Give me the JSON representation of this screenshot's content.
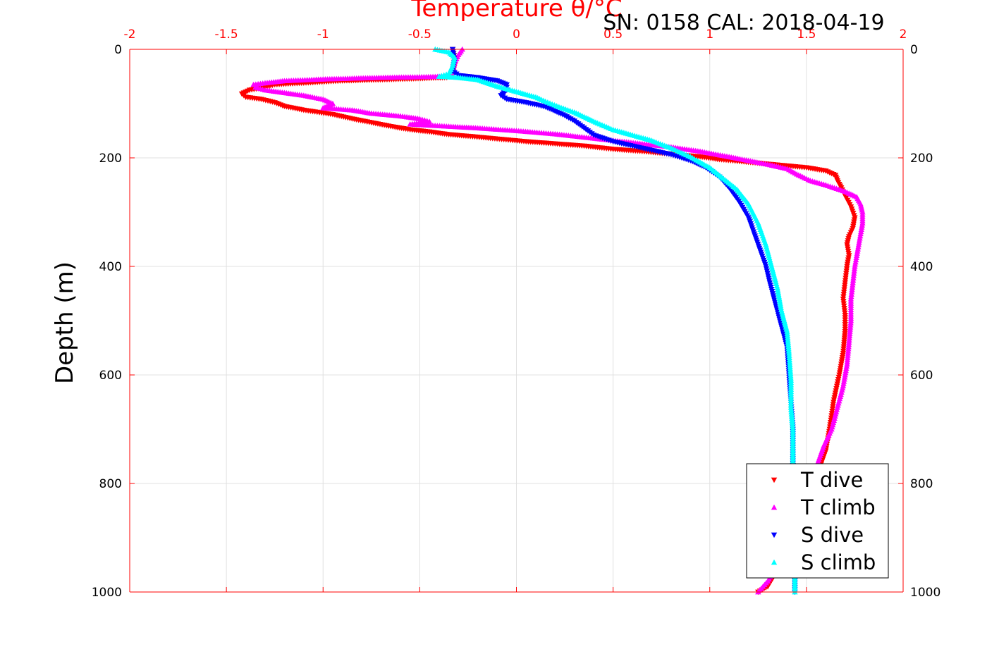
{
  "chart_data": {
    "type": "scatter",
    "title": "SN: 0158  CAL: 2018-04-19",
    "xlabel": "Temperature θ/°C",
    "ylabel": "Depth (m)",
    "xlim": [
      -2,
      2
    ],
    "ylim": [
      0,
      1000
    ],
    "y_reversed": true,
    "x_axis_position": "top",
    "x_ticks": [
      "-2",
      "-1.5",
      "-1",
      "-0.5",
      "0",
      "0.5",
      "1",
      "1.5",
      "2"
    ],
    "y_ticks": [
      "0",
      "200",
      "400",
      "600",
      "800",
      "1000"
    ],
    "grid": true,
    "legend_position": "bottom-right",
    "colors": {
      "axis_x": "#ff0000",
      "axis_y": "#000000",
      "grid": "#e0e0e0"
    },
    "series": [
      {
        "name": "T dive",
        "color": "#ff0000",
        "marker": "triangle-down",
        "points": [
          [
            -0.33,
            0
          ],
          [
            -0.32,
            15
          ],
          [
            -0.32,
            30
          ],
          [
            -0.33,
            45
          ],
          [
            -0.36,
            52
          ],
          [
            -0.6,
            55
          ],
          [
            -0.9,
            58
          ],
          [
            -1.1,
            62
          ],
          [
            -1.25,
            65
          ],
          [
            -1.3,
            70
          ],
          [
            -1.38,
            75
          ],
          [
            -1.42,
            82
          ],
          [
            -1.4,
            88
          ],
          [
            -1.32,
            92
          ],
          [
            -1.25,
            98
          ],
          [
            -1.2,
            105
          ],
          [
            -1.1,
            112
          ],
          [
            -0.95,
            120
          ],
          [
            -0.85,
            128
          ],
          [
            -0.75,
            135
          ],
          [
            -0.65,
            142
          ],
          [
            -0.55,
            148
          ],
          [
            -0.45,
            152
          ],
          [
            -0.35,
            157
          ],
          [
            -0.25,
            160
          ],
          [
            -0.1,
            165
          ],
          [
            0.05,
            170
          ],
          [
            0.2,
            174
          ],
          [
            0.35,
            178
          ],
          [
            0.5,
            184
          ],
          [
            0.65,
            188
          ],
          [
            0.8,
            193
          ],
          [
            0.95,
            198
          ],
          [
            1.05,
            203
          ],
          [
            1.2,
            208
          ],
          [
            1.35,
            213
          ],
          [
            1.5,
            218
          ],
          [
            1.6,
            224
          ],
          [
            1.65,
            232
          ],
          [
            1.66,
            242
          ],
          [
            1.68,
            255
          ],
          [
            1.7,
            270
          ],
          [
            1.73,
            290
          ],
          [
            1.75,
            310
          ],
          [
            1.74,
            330
          ],
          [
            1.72,
            345
          ],
          [
            1.71,
            360
          ],
          [
            1.72,
            380
          ],
          [
            1.71,
            400
          ],
          [
            1.7,
            430
          ],
          [
            1.69,
            460
          ],
          [
            1.7,
            490
          ],
          [
            1.7,
            520
          ],
          [
            1.69,
            560
          ],
          [
            1.67,
            600
          ],
          [
            1.64,
            650
          ],
          [
            1.62,
            700
          ],
          [
            1.6,
            740
          ],
          [
            1.58,
            760
          ],
          [
            1.53,
            820
          ],
          [
            1.45,
            870
          ],
          [
            1.4,
            920
          ],
          [
            1.35,
            960
          ],
          [
            1.3,
            990
          ],
          [
            1.25,
            1000
          ]
        ]
      },
      {
        "name": "T climb",
        "color": "#ff00ff",
        "marker": "triangle-up",
        "points": [
          [
            -0.28,
            0
          ],
          [
            -0.3,
            10
          ],
          [
            -0.32,
            25
          ],
          [
            -0.33,
            40
          ],
          [
            -0.35,
            50
          ],
          [
            -0.7,
            52
          ],
          [
            -1.0,
            55
          ],
          [
            -1.2,
            58
          ],
          [
            -1.3,
            62
          ],
          [
            -1.36,
            65
          ],
          [
            -1.35,
            70
          ],
          [
            -1.3,
            75
          ],
          [
            -1.2,
            80
          ],
          [
            -1.1,
            85
          ],
          [
            -1.0,
            92
          ],
          [
            -0.95,
            100
          ],
          [
            -1.0,
            108
          ],
          [
            -0.85,
            112
          ],
          [
            -0.75,
            118
          ],
          [
            -0.6,
            123
          ],
          [
            -0.5,
            128
          ],
          [
            -0.45,
            133
          ],
          [
            -0.55,
            138
          ],
          [
            -0.35,
            142
          ],
          [
            -0.2,
            145
          ],
          [
            0.0,
            150
          ],
          [
            0.2,
            156
          ],
          [
            0.35,
            162
          ],
          [
            0.5,
            168
          ],
          [
            0.65,
            174
          ],
          [
            0.8,
            180
          ],
          [
            0.95,
            188
          ],
          [
            1.1,
            198
          ],
          [
            1.2,
            205
          ],
          [
            1.3,
            212
          ],
          [
            1.4,
            220
          ],
          [
            1.45,
            230
          ],
          [
            1.52,
            242
          ],
          [
            1.6,
            250
          ],
          [
            1.7,
            262
          ],
          [
            1.76,
            272
          ],
          [
            1.78,
            285
          ],
          [
            1.79,
            300
          ],
          [
            1.79,
            320
          ],
          [
            1.78,
            340
          ],
          [
            1.77,
            360
          ],
          [
            1.76,
            380
          ],
          [
            1.75,
            400
          ],
          [
            1.74,
            430
          ],
          [
            1.73,
            460
          ],
          [
            1.73,
            500
          ],
          [
            1.72,
            540
          ],
          [
            1.71,
            580
          ],
          [
            1.69,
            620
          ],
          [
            1.66,
            660
          ],
          [
            1.63,
            700
          ],
          [
            1.59,
            730
          ],
          [
            1.56,
            760
          ],
          [
            1.53,
            800
          ],
          [
            1.47,
            850
          ],
          [
            1.4,
            900
          ],
          [
            1.35,
            950
          ],
          [
            1.3,
            980
          ],
          [
            1.25,
            1000
          ]
        ]
      },
      {
        "name": "S dive",
        "color": "#0000ff",
        "marker": "triangle-down",
        "points": [
          [
            -0.33,
            0
          ],
          [
            -0.32,
            20
          ],
          [
            -0.33,
            40
          ],
          [
            -0.3,
            48
          ],
          [
            -0.2,
            52
          ],
          [
            -0.1,
            58
          ],
          [
            -0.05,
            65
          ],
          [
            -0.05,
            75
          ],
          [
            -0.08,
            85
          ],
          [
            -0.05,
            92
          ],
          [
            0.05,
            98
          ],
          [
            0.15,
            106
          ],
          [
            0.2,
            114
          ],
          [
            0.25,
            122
          ],
          [
            0.3,
            132
          ],
          [
            0.35,
            145
          ],
          [
            0.4,
            158
          ],
          [
            0.5,
            170
          ],
          [
            0.6,
            178
          ],
          [
            0.7,
            186
          ],
          [
            0.8,
            194
          ],
          [
            0.9,
            205
          ],
          [
            0.98,
            218
          ],
          [
            1.05,
            235
          ],
          [
            1.1,
            255
          ],
          [
            1.15,
            280
          ],
          [
            1.2,
            310
          ],
          [
            1.23,
            340
          ],
          [
            1.26,
            370
          ],
          [
            1.29,
            400
          ],
          [
            1.31,
            430
          ],
          [
            1.34,
            470
          ],
          [
            1.37,
            510
          ],
          [
            1.4,
            550
          ],
          [
            1.41,
            600
          ],
          [
            1.42,
            650
          ],
          [
            1.43,
            700
          ],
          [
            1.43,
            750
          ],
          [
            1.43,
            800
          ],
          [
            1.43,
            850
          ],
          [
            1.44,
            900
          ],
          [
            1.44,
            950
          ],
          [
            1.44,
            1000
          ]
        ]
      },
      {
        "name": "S climb",
        "color": "#00ffff",
        "marker": "triangle-up",
        "points": [
          [
            -0.42,
            0
          ],
          [
            -0.35,
            5
          ],
          [
            -0.32,
            15
          ],
          [
            -0.33,
            30
          ],
          [
            -0.35,
            45
          ],
          [
            -0.4,
            50
          ],
          [
            -0.3,
            52
          ],
          [
            -0.2,
            56
          ],
          [
            -0.15,
            62
          ],
          [
            -0.1,
            68
          ],
          [
            0.0,
            78
          ],
          [
            0.1,
            88
          ],
          [
            0.15,
            96
          ],
          [
            0.22,
            106
          ],
          [
            0.3,
            116
          ],
          [
            0.36,
            126
          ],
          [
            0.42,
            136
          ],
          [
            0.5,
            148
          ],
          [
            0.6,
            158
          ],
          [
            0.7,
            168
          ],
          [
            0.8,
            182
          ],
          [
            0.9,
            198
          ],
          [
            1.0,
            218
          ],
          [
            1.07,
            238
          ],
          [
            1.14,
            258
          ],
          [
            1.2,
            285
          ],
          [
            1.25,
            320
          ],
          [
            1.29,
            360
          ],
          [
            1.32,
            400
          ],
          [
            1.35,
            440
          ],
          [
            1.37,
            480
          ],
          [
            1.4,
            520
          ],
          [
            1.41,
            560
          ],
          [
            1.42,
            610
          ],
          [
            1.42,
            660
          ],
          [
            1.43,
            700
          ],
          [
            1.43,
            750
          ],
          [
            1.43,
            800
          ],
          [
            1.44,
            850
          ],
          [
            1.44,
            900
          ],
          [
            1.44,
            950
          ],
          [
            1.44,
            1000
          ]
        ]
      }
    ]
  }
}
